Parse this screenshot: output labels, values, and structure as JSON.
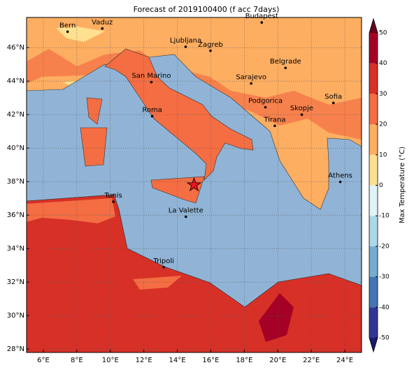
{
  "chart_data": {
    "type": "map",
    "title": "Forecast of 2019100400 (f acc 7days)",
    "xlim": [
      5,
      25
    ],
    "ylim": [
      27.8,
      47.8
    ],
    "xticks": [
      {
        "value": 6,
        "label": "6°E"
      },
      {
        "value": 8,
        "label": "8°E"
      },
      {
        "value": 10,
        "label": "10°E"
      },
      {
        "value": 12,
        "label": "12°E"
      },
      {
        "value": 14,
        "label": "14°E"
      },
      {
        "value": 16,
        "label": "16°E"
      },
      {
        "value": 18,
        "label": "18°E"
      },
      {
        "value": 20,
        "label": "20°E"
      },
      {
        "value": 22,
        "label": "22°E"
      },
      {
        "value": 24,
        "label": "24°E"
      }
    ],
    "yticks": [
      {
        "value": 28,
        "label": "28°N"
      },
      {
        "value": 30,
        "label": "30°N"
      },
      {
        "value": 32,
        "label": "32°N"
      },
      {
        "value": 34,
        "label": "34°N"
      },
      {
        "value": 36,
        "label": "36°N"
      },
      {
        "value": 38,
        "label": "38°N"
      },
      {
        "value": 40,
        "label": "40°N"
      },
      {
        "value": 42,
        "label": "42°N"
      },
      {
        "value": 44,
        "label": "44°N"
      },
      {
        "value": 46,
        "label": "46°N"
      }
    ],
    "grid": true,
    "cities": [
      {
        "name": "Bern",
        "lon": 7.45,
        "lat": 46.95
      },
      {
        "name": "Vaduz",
        "lon": 9.52,
        "lat": 47.14
      },
      {
        "name": "Budapest",
        "lon": 19.04,
        "lat": 47.5
      },
      {
        "name": "Ljubljana",
        "lon": 14.5,
        "lat": 46.05
      },
      {
        "name": "Zagreb",
        "lon": 15.98,
        "lat": 45.81
      },
      {
        "name": "Belgrade",
        "lon": 20.46,
        "lat": 44.79
      },
      {
        "name": "San Marino",
        "lon": 12.45,
        "lat": 43.94
      },
      {
        "name": "Sarajevo",
        "lon": 18.41,
        "lat": 43.86
      },
      {
        "name": "Sofia",
        "lon": 23.32,
        "lat": 42.7
      },
      {
        "name": "Podgorica",
        "lon": 19.26,
        "lat": 42.44
      },
      {
        "name": "Skopje",
        "lon": 21.43,
        "lat": 42.0
      },
      {
        "name": "Roma",
        "lon": 12.5,
        "lat": 41.9
      },
      {
        "name": "Tirana",
        "lon": 19.82,
        "lat": 41.33
      },
      {
        "name": "Athens",
        "lon": 23.73,
        "lat": 37.98
      },
      {
        "name": "Tunis",
        "lon": 10.18,
        "lat": 36.8
      },
      {
        "name": "La Valette",
        "lon": 14.51,
        "lat": 35.9
      },
      {
        "name": "Tripoli",
        "lon": 13.19,
        "lat": 32.89
      }
    ],
    "marker": {
      "lon": 15.0,
      "lat": 37.8,
      "color": "#e8141e"
    },
    "colorbar": {
      "label": "Max Temperature (°C)",
      "clim": [
        -50,
        50
      ],
      "ticks": [
        -50,
        -40,
        -30,
        -20,
        -10,
        0,
        10,
        20,
        30,
        40,
        50
      ],
      "colors": [
        "#313695",
        "#4575b4",
        "#74add1",
        "#abd9e9",
        "#e0f3f8",
        "#fee090",
        "#fdae61",
        "#f46d43",
        "#d73027",
        "#a50026"
      ],
      "under": "#1a1a6e",
      "over": "#67001f"
    }
  }
}
